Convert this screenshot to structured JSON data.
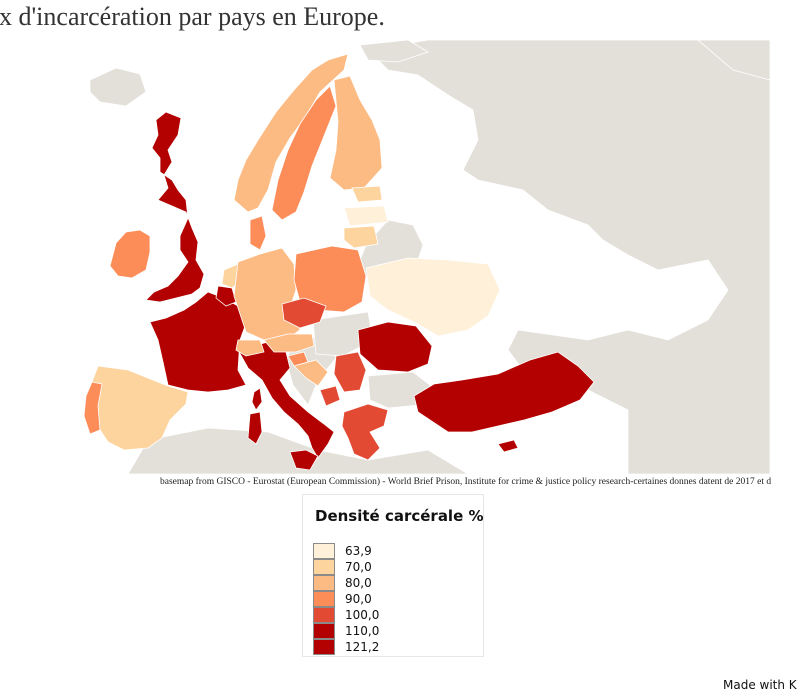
{
  "title": "ux d'incarcération par pays en Europe.",
  "source": "basemap from GISCO - Eurostat (European Commission) - World Brief Prison, Institute for crime & justice policy research-certaines donnes datent de 2017 et d",
  "footer": "Made with K",
  "colors": {
    "sea": "#ffffff",
    "land_no_data": "#e3e0da",
    "border": "#ffffff"
  },
  "legend": {
    "title": "Densité carcérale %",
    "items": [
      {
        "label": "63,9",
        "color": "#fef0d9"
      },
      {
        "label": "70,0",
        "color": "#fdd49e"
      },
      {
        "label": "80,0",
        "color": "#fdbb84"
      },
      {
        "label": "90,0",
        "color": "#fc8d59"
      },
      {
        "label": "100,0",
        "color": "#e34a33"
      },
      {
        "label": "110,0",
        "color": "#b30000"
      },
      {
        "label": "121,2",
        "color": "#b30000"
      }
    ]
  },
  "regions": [
    {
      "name": "United Kingdom",
      "value": 110.0
    },
    {
      "name": "Ireland",
      "value": 90.0
    },
    {
      "name": "France",
      "value": 115.0
    },
    {
      "name": "Italy",
      "value": 115.0
    },
    {
      "name": "Spain",
      "value": 75.0
    },
    {
      "name": "Portugal",
      "value": 95.0
    },
    {
      "name": "Belgium",
      "value": 115.0
    },
    {
      "name": "Netherlands",
      "value": 75.0
    },
    {
      "name": "Germany",
      "value": 80.0
    },
    {
      "name": "Denmark",
      "value": 95.0
    },
    {
      "name": "Norway",
      "value": 80.0
    },
    {
      "name": "Sweden",
      "value": 90.0
    },
    {
      "name": "Finland",
      "value": 85.0
    },
    {
      "name": "Estonia",
      "value": 70.0
    },
    {
      "name": "Latvia",
      "value": 65.0
    },
    {
      "name": "Lithuania",
      "value": 75.0
    },
    {
      "name": "Poland",
      "value": 90.0
    },
    {
      "name": "Czechia",
      "value": 100.0
    },
    {
      "name": "Austria",
      "value": 85.0
    },
    {
      "name": "Switzerland",
      "value": 85.0
    },
    {
      "name": "Slovenia",
      "value": 95.0
    },
    {
      "name": "Croatia",
      "value": 80.0
    },
    {
      "name": "Serbia",
      "value": 100.0
    },
    {
      "name": "Montenegro",
      "value": 100.0
    },
    {
      "name": "Greece",
      "value": 100.0
    },
    {
      "name": "Romania",
      "value": 115.0
    },
    {
      "name": "Ukraine",
      "value": 65.0
    },
    {
      "name": "Turkey",
      "value": 115.0
    },
    {
      "name": "Cyprus",
      "value": 110.0
    },
    {
      "name": "Sardinia",
      "value": 115.0
    },
    {
      "name": "Corsica",
      "value": 115.0
    },
    {
      "name": "Sicily",
      "value": 115.0
    }
  ]
}
